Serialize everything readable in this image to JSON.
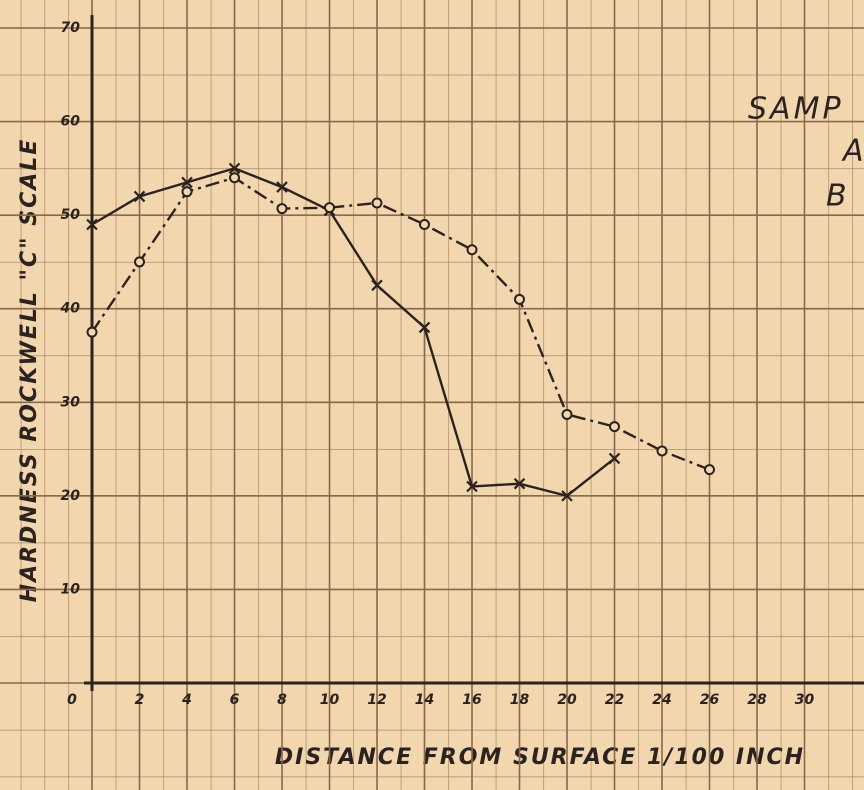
{
  "chart_data": {
    "type": "line",
    "y_label": "HARDNESS   ROCKWELL \"C\" SCALE",
    "x_label": "DISTANCE  FROM  SURFACE  1/100 INCH",
    "annotations": [
      "SAMP",
      "A",
      "B"
    ],
    "x": [
      0,
      2,
      4,
      6,
      8,
      10,
      12,
      14,
      16,
      18,
      20,
      22,
      24,
      26
    ],
    "series": [
      {
        "color": "#2a2320",
        "marker": "x",
        "linestyle": "solid",
        "values": [
          49,
          52,
          53.5,
          55,
          53,
          50.5,
          42.5,
          38,
          21,
          21.3,
          20,
          24,
          null,
          null
        ]
      },
      {
        "color": "#2a2320",
        "marker": "o",
        "linestyle": "dashdot",
        "values": [
          37.5,
          45,
          52.5,
          54,
          50.7,
          50.8,
          51.3,
          49,
          46.3,
          41,
          28.7,
          27.4,
          24.8,
          22.8
        ]
      }
    ],
    "xlim": [
      0,
      32
    ],
    "ylim": [
      0,
      70
    ],
    "xticks": [
      0,
      2,
      4,
      6,
      8,
      10,
      12,
      14,
      16,
      18,
      20,
      22,
      24,
      26,
      28,
      30
    ],
    "yticks": [
      0,
      10,
      20,
      30,
      40,
      50,
      60,
      70
    ],
    "grid": true
  }
}
